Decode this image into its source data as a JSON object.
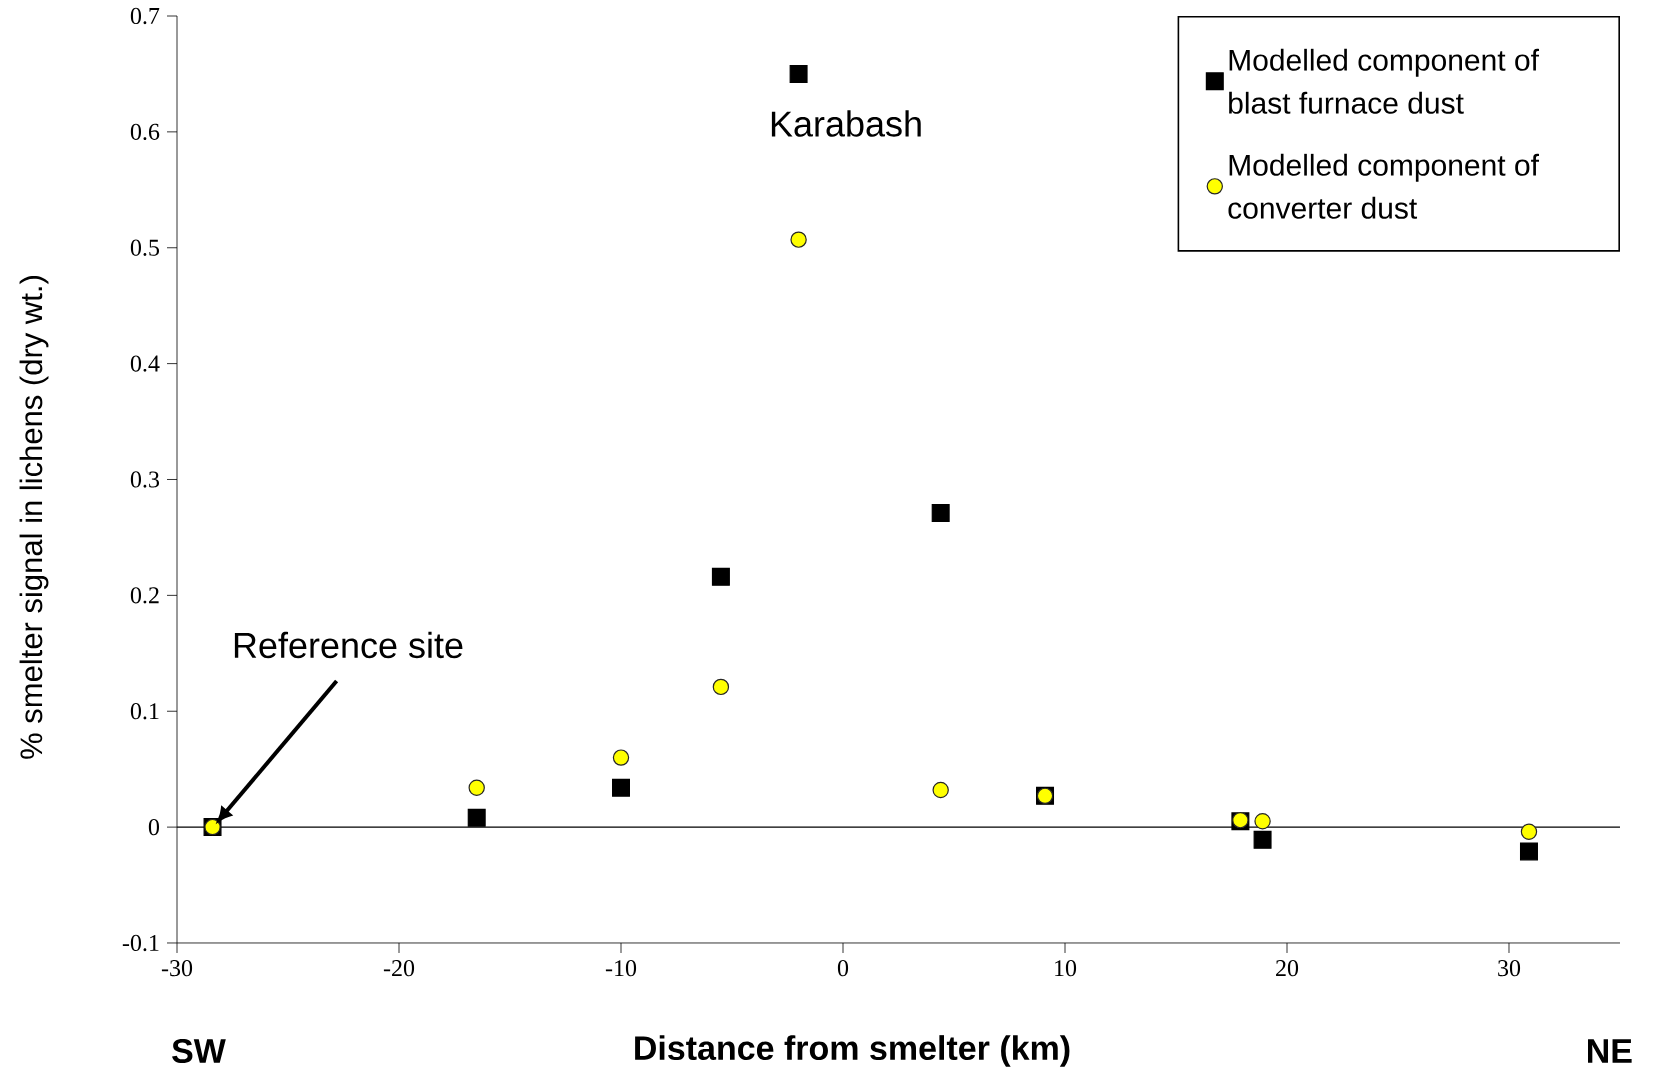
{
  "chart_data": {
    "type": "scatter",
    "xlabel": "Distance from smelter (km)",
    "ylabel": "% smelter signal in lichens (dry wt.)",
    "xlim": [
      -30,
      35
    ],
    "ylim": [
      -0.1,
      0.7
    ],
    "xticks": [
      -30,
      -20,
      -10,
      0,
      10,
      20,
      30
    ],
    "yticks": [
      -0.1,
      0,
      0.1,
      0.2,
      0.3,
      0.4,
      0.5,
      0.6,
      0.7
    ],
    "x": [
      -28.4,
      -16.5,
      -10.0,
      -5.5,
      -2.0,
      4.4,
      9.1,
      17.9,
      18.9,
      30.9
    ],
    "series": [
      {
        "name": "Modelled component of blast furnace dust",
        "color": "#000000",
        "marker": "square",
        "values": [
          0,
          0.008,
          0.034,
          0.216,
          0.65,
          0.271,
          0.027,
          0.005,
          -0.011,
          -0.021
        ]
      },
      {
        "name": "Modelled component of converter dust",
        "color": "#ffff00",
        "marker": "circle",
        "values": [
          0,
          0.034,
          0.06,
          0.121,
          0.507,
          0.032,
          0.027,
          0.006,
          0.005,
          -0.004
        ]
      }
    ],
    "legend": "top right",
    "grid": false,
    "ref_lines": [
      {
        "axis": "y",
        "value": 0,
        "color": "#000000"
      }
    ],
    "annotations": [
      {
        "text": "Karabash",
        "x": -2.0,
        "y": 0.65
      },
      "Reference site",
      "SW",
      "NE"
    ]
  }
}
